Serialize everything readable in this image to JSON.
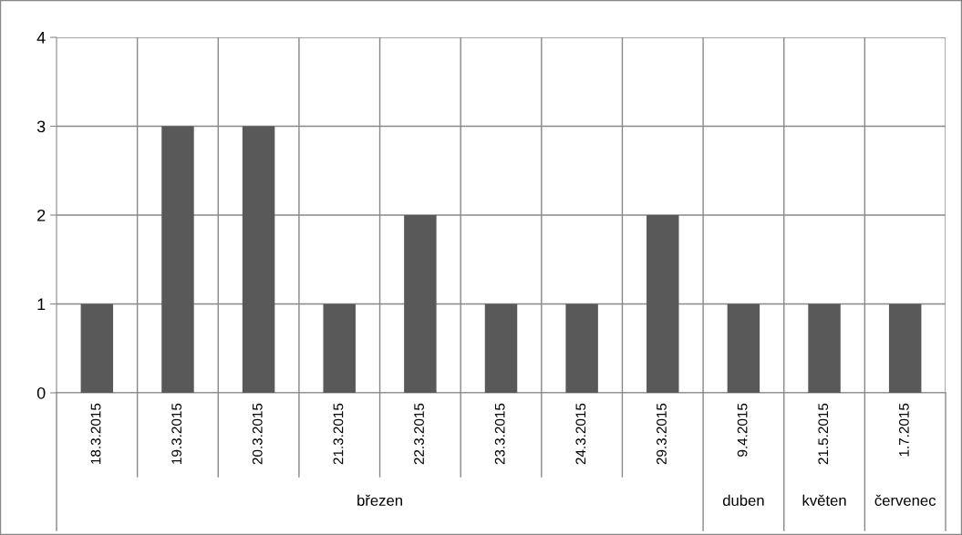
{
  "chart_data": {
    "type": "bar",
    "categories": [
      "18.3.2015",
      "19.3.2015",
      "20.3.2015",
      "21.3.2015",
      "22.3.2015",
      "23.3.2015",
      "24.3.2015",
      "29.3.2015",
      "9.4.2015",
      "21.5.2015",
      "1.7.2015"
    ],
    "values": [
      1,
      3,
      3,
      1,
      2,
      1,
      1,
      2,
      1,
      1,
      1
    ],
    "color": "#595959",
    "ylim": [
      0,
      4
    ],
    "yticks": [
      0,
      1,
      2,
      3,
      4
    ],
    "grid": true,
    "annotations": [
      "březen",
      "duben",
      "květen",
      "červenec"
    ]
  }
}
